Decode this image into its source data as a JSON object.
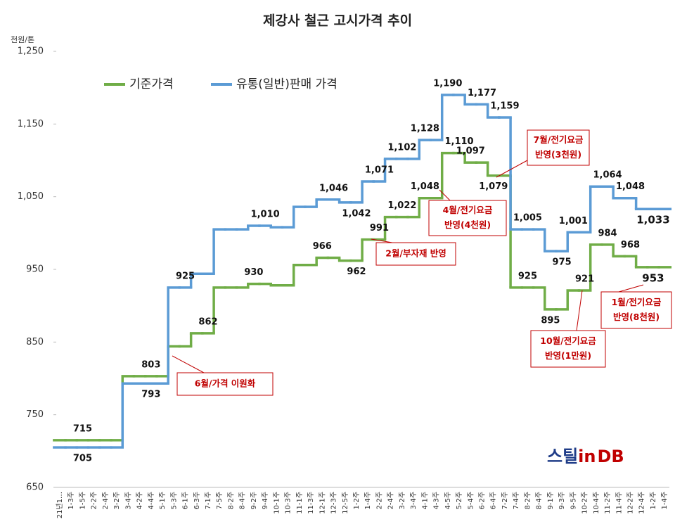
{
  "chart_data": {
    "type": "step",
    "title": "제강사 철근 고시가격 추이",
    "y_unit": "천원/톤",
    "categories": [
      "21년1…",
      "1-3주",
      "1-5주",
      "2-2주",
      "2-4주",
      "3-2주",
      "3-4주",
      "4-2주",
      "4-4주",
      "5-1주",
      "5-3주",
      "6-1주",
      "6-3주",
      "7-1주",
      "7-5주",
      "8-2주",
      "8-4주",
      "9-2주",
      "9-4주",
      "10-1주",
      "10-3주",
      "11-1주",
      "11-3주",
      "12-1주",
      "12-3주",
      "12-5주",
      "1-2주",
      "1-4주",
      "2-2주",
      "2-4주",
      "3-2주",
      "3-4주",
      "4-1주",
      "4-3주",
      "4-5주",
      "5-2주",
      "5-4주",
      "6-2주",
      "6-4주",
      "7-2주",
      "7-4주",
      "8-2주",
      "8-4주",
      "9-1주",
      "9-3주",
      "9-5주",
      "10-2주",
      "10-4주",
      "11-2주",
      "11-4주",
      "12-2주",
      "12-4주",
      "1-2주",
      "1-4주"
    ],
    "series": [
      {
        "name": "기준가격",
        "color": "#70ad47",
        "values": [
          715,
          715,
          715,
          715,
          715,
          715,
          803,
          803,
          803,
          803,
          844,
          844,
          862,
          862,
          925,
          925,
          925,
          930,
          930,
          928,
          928,
          956,
          956,
          966,
          966,
          962,
          962,
          991,
          991,
          1022,
          1022,
          1022,
          1048,
          1048,
          1110,
          1110,
          1097,
          1097,
          1079,
          1079,
          925,
          925,
          925,
          895,
          895,
          921,
          921,
          984,
          984,
          968,
          968,
          953,
          953,
          953
        ],
        "value_labels": [
          null,
          null,
          "715",
          null,
          null,
          null,
          null,
          null,
          "803",
          null,
          null,
          null,
          null,
          "862",
          null,
          null,
          null,
          "930",
          null,
          null,
          null,
          null,
          null,
          "966",
          null,
          null,
          "962",
          null,
          "991",
          null,
          "1,022",
          null,
          "1,048",
          null,
          null,
          "1,110",
          "1,097",
          null,
          "1,079",
          null,
          null,
          "925",
          null,
          "895",
          null,
          null,
          "921",
          null,
          "984",
          null,
          "968",
          null,
          "953",
          null
        ]
      },
      {
        "name": "유통(일반)판매 가격",
        "color": "#5b9bd5",
        "values": [
          705,
          705,
          705,
          705,
          705,
          705,
          793,
          793,
          793,
          793,
          925,
          925,
          944,
          944,
          1005,
          1005,
          1005,
          1010,
          1010,
          1008,
          1008,
          1036,
          1036,
          1046,
          1046,
          1042,
          1042,
          1071,
          1071,
          1102,
          1102,
          1102,
          1128,
          1128,
          1190,
          1190,
          1177,
          1177,
          1159,
          1159,
          1005,
          1005,
          1005,
          975,
          975,
          1001,
          1001,
          1064,
          1064,
          1048,
          1048,
          1033,
          1033,
          1033
        ],
        "value_labels": [
          null,
          null,
          "705",
          null,
          null,
          null,
          null,
          null,
          "793",
          null,
          null,
          "925",
          null,
          null,
          null,
          null,
          null,
          null,
          "1,010",
          null,
          null,
          null,
          null,
          null,
          "1,046",
          null,
          "1,042",
          null,
          "1,071",
          null,
          "1,102",
          null,
          "1,128",
          null,
          "1,190",
          null,
          null,
          "1,177",
          null,
          "1,159",
          null,
          "1,005",
          null,
          null,
          "975",
          "1,001",
          null,
          null,
          "1,064",
          null,
          "1,048",
          null,
          "1,033",
          null
        ]
      }
    ],
    "ylim": [
      650,
      1250
    ],
    "yticks": [
      650,
      750,
      850,
      950,
      {
        "value": 1050,
        "label": "1,050"
      },
      {
        "value": 1150,
        "label": "1,150"
      },
      {
        "value": 1250,
        "label": "1,250"
      }
    ],
    "grid": false,
    "annotations": [
      [
        "6월/가격 이원화"
      ],
      [
        "2월/부자재 반영"
      ],
      [
        "4월/전기요금",
        "반영(4천원)"
      ],
      [
        "7월/전기요금",
        "반영(3천원)"
      ],
      [
        "10월/전기요금",
        "반영(1만원)"
      ],
      [
        "1월/전기요금",
        "반영(8천원)"
      ]
    ],
    "logo": [
      "스틸",
      "in",
      "DB"
    ]
  }
}
